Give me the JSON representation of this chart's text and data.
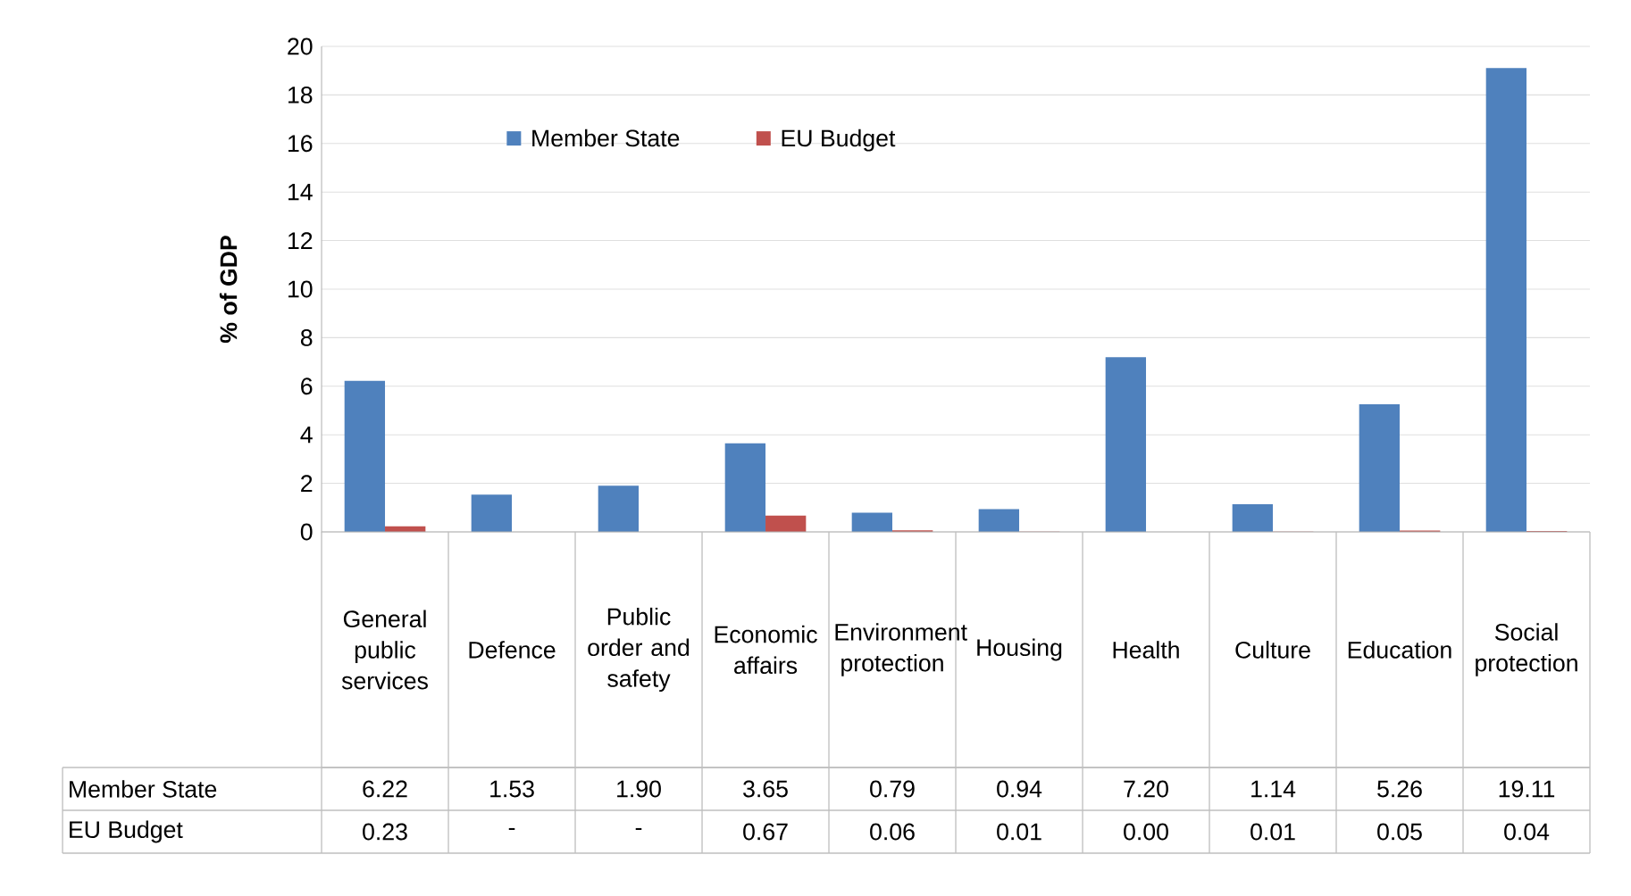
{
  "chart_data": {
    "type": "bar",
    "ylabel": "% of GDP",
    "categories": [
      "General public services",
      "Defence",
      "Public order and safety",
      "Economic affairs",
      "Environment protection",
      "Housing",
      "Health",
      "Culture",
      "Education",
      "Social protection"
    ],
    "series": [
      {
        "name": "Member State",
        "color": "#4f81bd",
        "values": [
          6.22,
          1.53,
          1.9,
          3.65,
          0.79,
          0.94,
          7.2,
          1.14,
          5.26,
          19.11
        ],
        "value_labels": [
          "6.22",
          "1.53",
          "1.90",
          "3.65",
          "0.79",
          "0.94",
          "7.20",
          "1.14",
          "5.26",
          "19.11"
        ]
      },
      {
        "name": "EU Budget",
        "color": "#c0504d",
        "values": [
          0.23,
          null,
          null,
          0.67,
          0.06,
          0.01,
          0.0,
          0.01,
          0.05,
          0.04
        ],
        "value_labels": [
          "0.23",
          "-",
          "-",
          "0.67",
          "0.06",
          "0.01",
          "0.00",
          "0.01",
          "0.05",
          "0.04"
        ]
      }
    ],
    "ylim": [
      0,
      20
    ],
    "yticks": [
      0,
      2,
      4,
      6,
      8,
      10,
      12,
      14,
      16,
      18,
      20
    ],
    "grid": "y",
    "legend": "top left"
  }
}
